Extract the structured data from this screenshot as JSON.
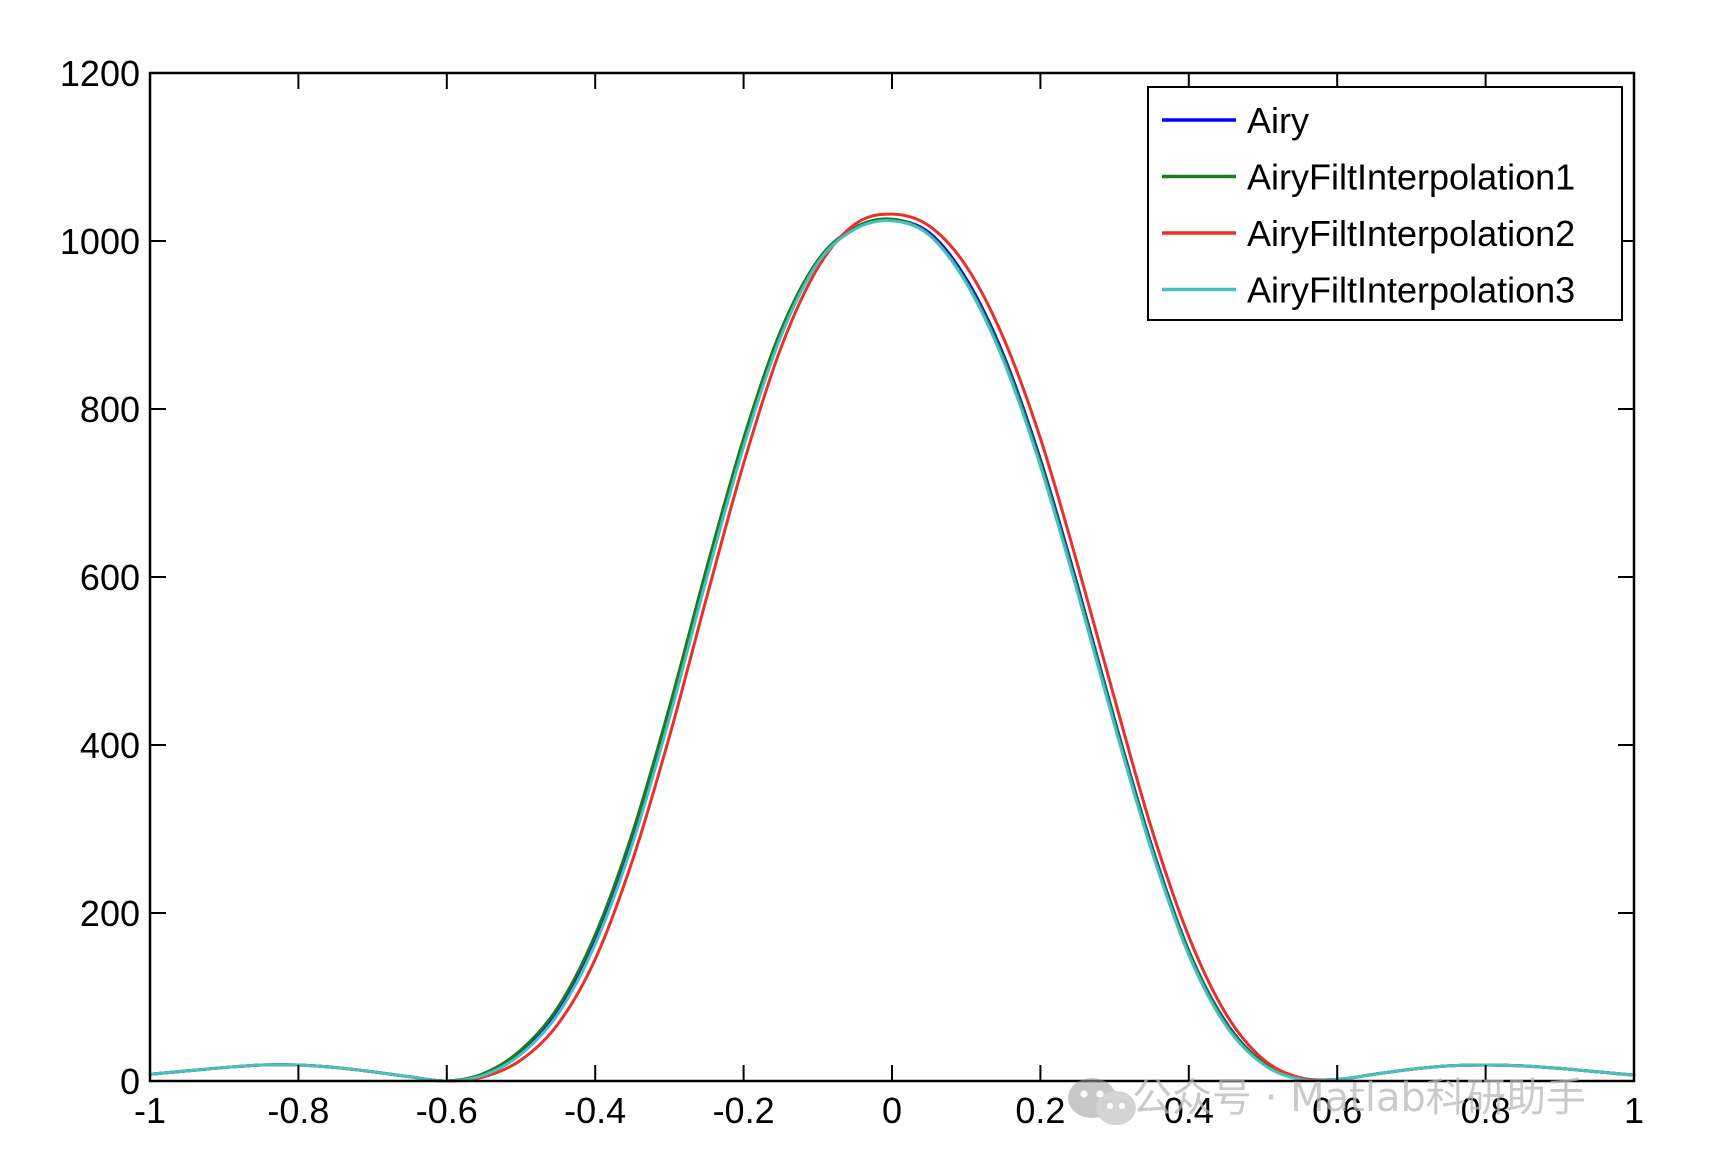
{
  "chart_data": {
    "type": "line",
    "title": "",
    "xlabel": "",
    "ylabel": "",
    "xlim": [
      -1,
      1
    ],
    "ylim": [
      0,
      1200
    ],
    "xticks": [
      -1,
      -0.8,
      -0.6,
      -0.4,
      -0.2,
      0,
      0.2,
      0.4,
      0.6,
      0.8,
      1
    ],
    "xtick_labels": [
      "-1",
      "-0.8",
      "-0.6",
      "-0.4",
      "-0.2",
      "0",
      "0.2",
      "0.4",
      "0.6",
      "0.8",
      "1"
    ],
    "yticks": [
      0,
      200,
      400,
      600,
      800,
      1000,
      1200
    ],
    "ytick_labels": [
      "0",
      "200",
      "400",
      "600",
      "800",
      "1000",
      "1200"
    ],
    "grid": false,
    "legend_position": "top-right",
    "series": [
      {
        "name": "Airy",
        "color": "#0000ff",
        "x": [
          -1,
          -0.95,
          -0.9,
          -0.85,
          -0.8,
          -0.75,
          -0.7,
          -0.65,
          -0.6,
          -0.55,
          -0.5,
          -0.45,
          -0.4,
          -0.35,
          -0.3,
          -0.25,
          -0.2,
          -0.15,
          -0.1,
          -0.05,
          0,
          0.05,
          0.1,
          0.15,
          0.2,
          0.25,
          0.3,
          0.35,
          0.4,
          0.45,
          0.5,
          0.55,
          0.6,
          0.65,
          0.7,
          0.75,
          0.8,
          0.85,
          0.9,
          0.95,
          1
        ],
        "y": [
          8,
          12,
          16,
          19,
          19,
          16,
          11,
          5,
          0,
          8,
          35,
          85,
          170,
          290,
          440,
          605,
          760,
          890,
          975,
          1015,
          1025,
          1010,
          955,
          865,
          740,
          590,
          430,
          280,
          155,
          70,
          22,
          3,
          2,
          8,
          14,
          18,
          19,
          18,
          15,
          11,
          7
        ]
      },
      {
        "name": "AiryFiltInterpolation1",
        "color": "#1f7a1f",
        "x": [
          -1,
          -0.95,
          -0.9,
          -0.85,
          -0.8,
          -0.75,
          -0.7,
          -0.65,
          -0.6,
          -0.55,
          -0.5,
          -0.45,
          -0.4,
          -0.35,
          -0.3,
          -0.25,
          -0.2,
          -0.15,
          -0.1,
          -0.05,
          0,
          0.05,
          0.1,
          0.15,
          0.2,
          0.25,
          0.3,
          0.35,
          0.4,
          0.45,
          0.5,
          0.55,
          0.6,
          0.65,
          0.7,
          0.75,
          0.8,
          0.85,
          0.9,
          0.95,
          1
        ],
        "y": [
          8,
          12,
          16,
          19,
          19,
          16,
          11,
          5,
          0,
          9,
          37,
          88,
          174,
          295,
          445,
          610,
          765,
          893,
          977,
          1016,
          1026,
          1008,
          952,
          862,
          737,
          587,
          428,
          278,
          154,
          69,
          22,
          3,
          2,
          8,
          14,
          18,
          19,
          18,
          15,
          11,
          7
        ]
      },
      {
        "name": "AiryFiltInterpolation2",
        "color": "#e8312a",
        "x": [
          -1,
          -0.95,
          -0.9,
          -0.85,
          -0.8,
          -0.75,
          -0.7,
          -0.65,
          -0.6,
          -0.55,
          -0.5,
          -0.45,
          -0.4,
          -0.35,
          -0.3,
          -0.25,
          -0.2,
          -0.15,
          -0.1,
          -0.05,
          0,
          0.05,
          0.1,
          0.15,
          0.2,
          0.25,
          0.3,
          0.35,
          0.4,
          0.45,
          0.5,
          0.55,
          0.6,
          0.65,
          0.7,
          0.75,
          0.8,
          0.85,
          0.9,
          0.95,
          1
        ],
        "y": [
          8,
          12,
          16,
          19,
          19,
          16,
          11,
          5,
          0,
          5,
          25,
          68,
          145,
          262,
          410,
          575,
          735,
          872,
          968,
          1020,
          1032,
          1018,
          970,
          885,
          765,
          615,
          455,
          300,
          172,
          80,
          26,
          4,
          2,
          8,
          14,
          18,
          19,
          18,
          15,
          11,
          7
        ]
      },
      {
        "name": "AiryFiltInterpolation3",
        "color": "#46c0c0",
        "x": [
          -1,
          -0.95,
          -0.9,
          -0.85,
          -0.8,
          -0.75,
          -0.7,
          -0.65,
          -0.6,
          -0.55,
          -0.5,
          -0.45,
          -0.4,
          -0.35,
          -0.3,
          -0.25,
          -0.2,
          -0.15,
          -0.1,
          -0.05,
          0,
          0.05,
          0.1,
          0.15,
          0.2,
          0.25,
          0.3,
          0.35,
          0.4,
          0.45,
          0.5,
          0.55,
          0.6,
          0.65,
          0.7,
          0.75,
          0.8,
          0.85,
          0.9,
          0.95,
          1
        ],
        "y": [
          8,
          12,
          16,
          19,
          19,
          16,
          11,
          5,
          0,
          7,
          32,
          80,
          163,
          282,
          432,
          598,
          755,
          886,
          974,
          1014,
          1024,
          1007,
          950,
          858,
          732,
          582,
          423,
          274,
          150,
          66,
          20,
          2,
          2,
          8,
          14,
          18,
          19,
          18,
          15,
          11,
          7
        ]
      }
    ]
  },
  "watermark": {
    "text": "公众号 · Matlab科研助手",
    "icon": "wechat-icon"
  }
}
